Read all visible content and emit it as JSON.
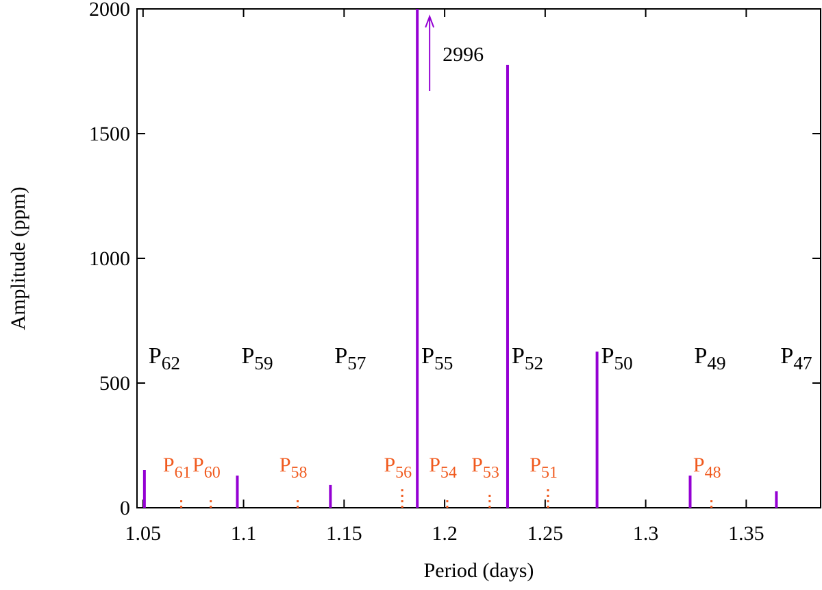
{
  "chart_data": {
    "type": "impulse",
    "xlabel": "Period (days)",
    "ylabel": "Amplitude (ppm)",
    "xlim": [
      1.047,
      1.387
    ],
    "ylim": [
      0,
      2000
    ],
    "xticks": [
      1.05,
      1.1,
      1.15,
      1.2,
      1.25,
      1.3,
      1.35
    ],
    "yticks": [
      0,
      500,
      1000,
      1500,
      2000
    ],
    "series": [
      {
        "color": "#9400d3",
        "style": "solid",
        "x": [
          1.0507,
          1.0969,
          1.1432,
          1.1864,
          1.2313,
          1.2758,
          1.3221,
          1.365
        ],
        "values": [
          151,
          129,
          91,
          2996,
          1775,
          626,
          129,
          66
        ],
        "value_labels": [
          null,
          null,
          null,
          "2996",
          null,
          null,
          null,
          null
        ],
        "labels": [
          "P62",
          "P59",
          "P57",
          "P55",
          "P52",
          "P50",
          "P49",
          "P47"
        ],
        "label_color": "#000000"
      },
      {
        "color": "#f05a1e",
        "style": "dotted",
        "x": [
          1.069,
          1.0837,
          1.1269,
          1.1789,
          1.2013,
          1.2224,
          1.2514,
          1.3327
        ],
        "values": [
          35,
          35,
          35,
          85,
          35,
          63,
          85,
          35
        ],
        "labels": [
          "P61",
          "P60",
          "P58",
          "P56",
          "P54",
          "P53",
          "P51",
          "P48"
        ],
        "label_color": "#f05a1e"
      }
    ]
  }
}
